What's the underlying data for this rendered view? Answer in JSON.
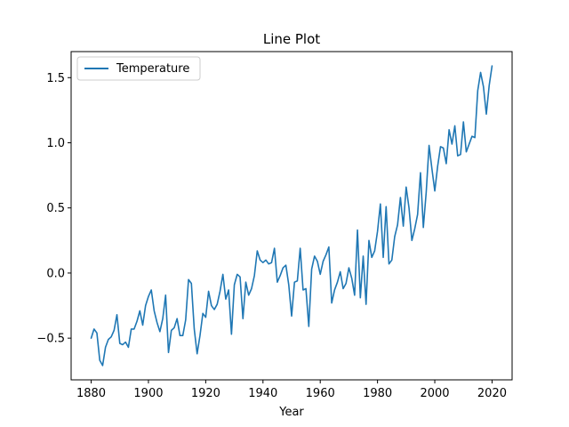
{
  "chart_data": {
    "type": "line",
    "title": "Line Plot",
    "xlabel": "Year",
    "ylabel": "",
    "xlim": [
      1873,
      2027
    ],
    "ylim": [
      -0.82,
      1.7
    ],
    "xticks": [
      1880,
      1900,
      1920,
      1940,
      1960,
      1980,
      2000,
      2020
    ],
    "xtick_labels": [
      "1880",
      "1900",
      "1920",
      "1940",
      "1960",
      "1980",
      "2000",
      "2020"
    ],
    "yticks": [
      -0.5,
      0.0,
      0.5,
      1.0,
      1.5
    ],
    "ytick_labels": [
      "−0.5",
      "0.0",
      "0.5",
      "1.0",
      "1.5"
    ],
    "grid": false,
    "legend_position": "upper left",
    "series": [
      {
        "name": "Temperature",
        "color": "#1f77b4",
        "x": [
          1880,
          1881,
          1882,
          1883,
          1884,
          1885,
          1886,
          1887,
          1888,
          1889,
          1890,
          1891,
          1892,
          1893,
          1894,
          1895,
          1896,
          1897,
          1898,
          1899,
          1900,
          1901,
          1902,
          1903,
          1904,
          1905,
          1906,
          1907,
          1908,
          1909,
          1910,
          1911,
          1912,
          1913,
          1914,
          1915,
          1916,
          1917,
          1918,
          1919,
          1920,
          1921,
          1922,
          1923,
          1924,
          1925,
          1926,
          1927,
          1928,
          1929,
          1930,
          1931,
          1932,
          1933,
          1934,
          1935,
          1936,
          1937,
          1938,
          1939,
          1940,
          1941,
          1942,
          1943,
          1944,
          1945,
          1946,
          1947,
          1948,
          1949,
          1950,
          1951,
          1952,
          1953,
          1954,
          1955,
          1956,
          1957,
          1958,
          1959,
          1960,
          1961,
          1962,
          1963,
          1964,
          1965,
          1966,
          1967,
          1968,
          1969,
          1970,
          1971,
          1972,
          1973,
          1974,
          1975,
          1976,
          1977,
          1978,
          1979,
          1980,
          1981,
          1982,
          1983,
          1984,
          1985,
          1986,
          1987,
          1988,
          1989,
          1990,
          1991,
          1992,
          1993,
          1994,
          1995,
          1996,
          1997,
          1998,
          1999,
          2000,
          2001,
          2002,
          2003,
          2004,
          2005,
          2006,
          2007,
          2008,
          2009,
          2010,
          2011,
          2012,
          2013,
          2014,
          2015,
          2016,
          2017,
          2018,
          2019,
          2020
        ],
        "values": [
          -0.5,
          -0.43,
          -0.46,
          -0.67,
          -0.71,
          -0.57,
          -0.51,
          -0.49,
          -0.44,
          -0.32,
          -0.54,
          -0.55,
          -0.53,
          -0.57,
          -0.43,
          -0.43,
          -0.37,
          -0.29,
          -0.4,
          -0.25,
          -0.18,
          -0.13,
          -0.29,
          -0.38,
          -0.45,
          -0.35,
          -0.17,
          -0.61,
          -0.44,
          -0.42,
          -0.35,
          -0.48,
          -0.48,
          -0.36,
          -0.05,
          -0.08,
          -0.43,
          -0.62,
          -0.48,
          -0.31,
          -0.34,
          -0.14,
          -0.25,
          -0.28,
          -0.24,
          -0.14,
          -0.01,
          -0.2,
          -0.13,
          -0.47,
          -0.09,
          -0.01,
          -0.03,
          -0.35,
          -0.07,
          -0.17,
          -0.12,
          -0.02,
          0.17,
          0.1,
          0.08,
          0.1,
          0.07,
          0.08,
          0.19,
          -0.07,
          -0.02,
          0.04,
          0.06,
          -0.09,
          -0.33,
          -0.07,
          -0.06,
          0.19,
          -0.13,
          -0.12,
          -0.41,
          0.03,
          0.13,
          0.09,
          -0.01,
          0.09,
          0.14,
          0.2,
          -0.23,
          -0.13,
          -0.07,
          0.01,
          -0.12,
          -0.08,
          0.04,
          -0.04,
          -0.17,
          0.33,
          -0.19,
          0.13,
          -0.24,
          0.25,
          0.12,
          0.17,
          0.32,
          0.53,
          0.12,
          0.51,
          0.07,
          0.1,
          0.28,
          0.37,
          0.58,
          0.36,
          0.66,
          0.5,
          0.25,
          0.34,
          0.45,
          0.77,
          0.35,
          0.62,
          0.98,
          0.8,
          0.63,
          0.82,
          0.97,
          0.96,
          0.84,
          1.1,
          0.99,
          1.13,
          0.9,
          0.91,
          1.16,
          0.93,
          0.99,
          1.05,
          1.04,
          1.4,
          1.54,
          1.43,
          1.22,
          1.44,
          1.59
        ]
      }
    ]
  }
}
